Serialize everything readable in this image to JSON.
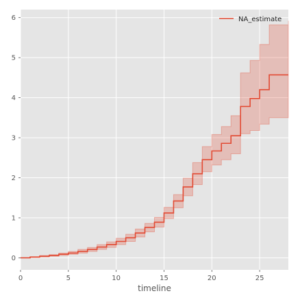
{
  "chart_data": {
    "type": "line",
    "title": "",
    "xlabel": "timeline",
    "ylabel": "",
    "xlim": [
      0,
      28
    ],
    "ylim": [
      -0.3,
      6.2
    ],
    "xticks": [
      0,
      5,
      10,
      15,
      20,
      25
    ],
    "yticks": [
      0,
      1,
      2,
      3,
      4,
      5,
      6
    ],
    "grid": true,
    "legend_position": "top-right",
    "colors": {
      "line": "#E24A33",
      "band": "#E24A33",
      "background": "#E5E5E5",
      "grid": "#FFFFFF",
      "tick_text": "#555555"
    },
    "series": [
      {
        "name": "NA_estimate",
        "step": "post",
        "x": [
          0,
          1,
          2,
          3,
          4,
          5,
          6,
          7,
          8,
          9,
          10,
          11,
          12,
          13,
          14,
          15,
          16,
          17,
          18,
          19,
          20,
          21,
          22,
          23,
          24,
          25,
          26,
          28
        ],
        "y": [
          0,
          0.02,
          0.04,
          0.06,
          0.09,
          0.12,
          0.16,
          0.21,
          0.27,
          0.33,
          0.41,
          0.5,
          0.62,
          0.76,
          0.89,
          1.12,
          1.42,
          1.77,
          2.1,
          2.45,
          2.67,
          2.86,
          3.05,
          3.78,
          3.98,
          4.2,
          4.57,
          4.57
        ],
        "ci_lower": [
          0,
          0.01,
          0.02,
          0.04,
          0.06,
          0.09,
          0.12,
          0.16,
          0.21,
          0.26,
          0.33,
          0.41,
          0.52,
          0.65,
          0.77,
          0.98,
          1.25,
          1.55,
          1.83,
          2.15,
          2.32,
          2.45,
          2.6,
          3.1,
          3.18,
          3.34,
          3.5,
          3.5
        ],
        "ci_upper": [
          0,
          0.03,
          0.06,
          0.08,
          0.12,
          0.16,
          0.21,
          0.26,
          0.33,
          0.4,
          0.49,
          0.59,
          0.72,
          0.86,
          1.01,
          1.26,
          1.58,
          1.99,
          2.38,
          2.78,
          3.08,
          3.28,
          3.55,
          4.62,
          4.93,
          5.33,
          5.82,
          5.92
        ]
      }
    ]
  }
}
